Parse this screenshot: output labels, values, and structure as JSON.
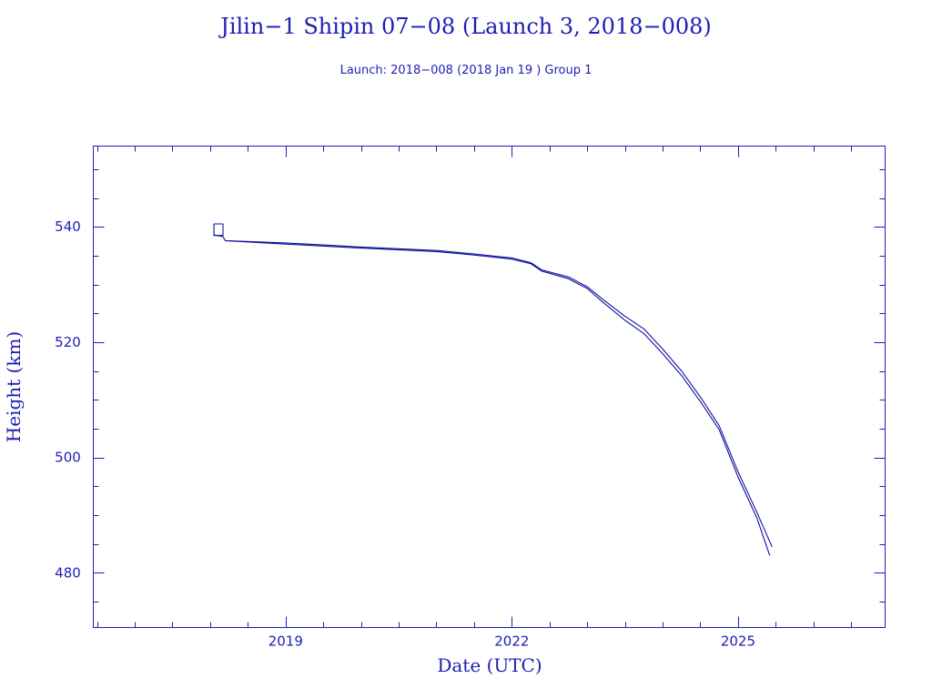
{
  "colors": {
    "ink": "#1e1eb4",
    "line": "#1010a0",
    "background": "#ffffff"
  },
  "chart_data": {
    "type": "line",
    "title": "Jilin−1 Shipin 07−08 (Launch 3, 2018−008)",
    "subtitle": "Launch: 2018−008  (2018 Jan 19 )  Group 1",
    "xlabel": "Date (UTC)",
    "ylabel": "Height (km)",
    "xlim": [
      2016.45,
      2026.95
    ],
    "ylim": [
      470.5,
      554
    ],
    "x_ticks": [
      2019,
      2022,
      2025
    ],
    "x_tick_labels": [
      "2019",
      "2022",
      "2025"
    ],
    "y_ticks": [
      480,
      500,
      520,
      540
    ],
    "y_tick_labels": [
      "480",
      "500",
      "520",
      "540"
    ],
    "grid": false,
    "legend": "none",
    "series": [
      {
        "values": [
          [
            2018.05,
            540.5
          ],
          [
            2018.05,
            538.5
          ],
          [
            2018.17,
            538.5
          ],
          [
            2018.17,
            540.5
          ],
          [
            2018.05,
            540.5
          ]
        ]
      },
      {
        "values": [
          [
            2018.05,
            538.6
          ],
          [
            2018.17,
            538.3
          ],
          [
            2018.2,
            537.6
          ],
          [
            2019.0,
            537.2
          ],
          [
            2020.0,
            536.5
          ],
          [
            2021.0,
            535.9
          ],
          [
            2021.5,
            535.3
          ],
          [
            2022.0,
            534.6
          ],
          [
            2022.25,
            533.8
          ],
          [
            2022.4,
            532.5
          ],
          [
            2022.75,
            531.3
          ],
          [
            2023.0,
            529.6
          ],
          [
            2023.2,
            527.5
          ],
          [
            2023.5,
            524.5
          ],
          [
            2023.75,
            522.3
          ],
          [
            2024.0,
            518.8
          ],
          [
            2024.25,
            515.0
          ],
          [
            2024.5,
            510.5
          ],
          [
            2024.75,
            505.5
          ],
          [
            2025.0,
            497.5
          ],
          [
            2025.25,
            490.5
          ],
          [
            2025.45,
            484.5
          ]
        ]
      },
      {
        "values": [
          [
            2018.2,
            537.6
          ],
          [
            2019.0,
            537.0
          ],
          [
            2020.0,
            536.3
          ],
          [
            2021.0,
            535.7
          ],
          [
            2021.5,
            535.1
          ],
          [
            2022.0,
            534.4
          ],
          [
            2022.25,
            533.6
          ],
          [
            2022.4,
            532.3
          ],
          [
            2022.75,
            531.0
          ],
          [
            2023.0,
            529.3
          ],
          [
            2023.2,
            527.0
          ],
          [
            2023.5,
            523.8
          ],
          [
            2023.75,
            521.5
          ],
          [
            2024.0,
            518.0
          ],
          [
            2024.25,
            514.2
          ],
          [
            2024.5,
            509.7
          ],
          [
            2024.75,
            504.8
          ],
          [
            2025.0,
            496.6
          ],
          [
            2025.25,
            489.5
          ],
          [
            2025.42,
            483.0
          ]
        ]
      }
    ]
  }
}
